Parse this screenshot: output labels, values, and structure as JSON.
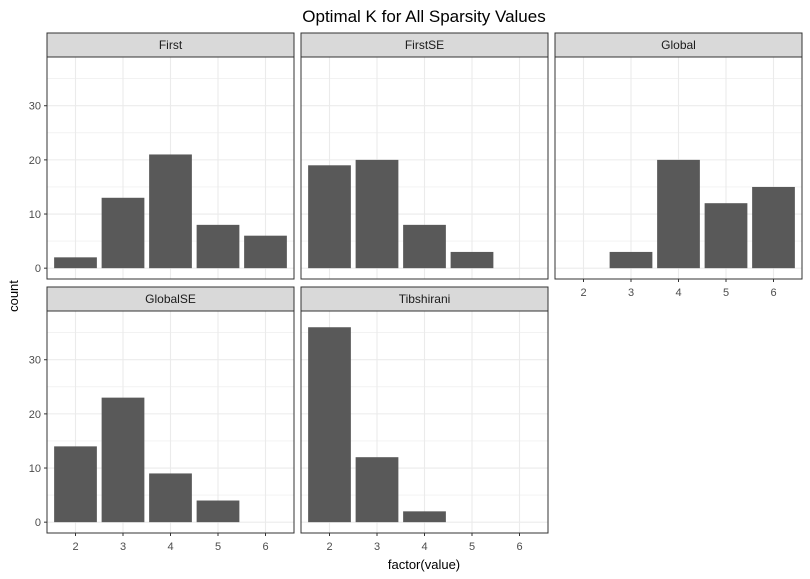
{
  "chart_data": {
    "type": "bar",
    "title": "Optimal K for All Sparsity Values",
    "xlabel": "factor(value)",
    "ylabel": "count",
    "categories": [
      "2",
      "3",
      "4",
      "5",
      "6"
    ],
    "y_ticks": [
      "0",
      "10",
      "20",
      "30"
    ],
    "ylim": [
      -2,
      39
    ],
    "grid": true,
    "bar_color": "#595959",
    "strip_color": "#d9d9d9",
    "grid_color": "#ebebeb",
    "panels": [
      {
        "name": "First",
        "values": [
          2,
          13,
          21,
          8,
          6
        ]
      },
      {
        "name": "FirstSE",
        "values": [
          19,
          20,
          8,
          3,
          0
        ]
      },
      {
        "name": "Global",
        "values": [
          0,
          3,
          20,
          12,
          15
        ]
      },
      {
        "name": "GlobalSE",
        "values": [
          14,
          23,
          9,
          4,
          0
        ]
      },
      {
        "name": "Tibshirani",
        "values": [
          36,
          12,
          2,
          0,
          0
        ]
      }
    ]
  }
}
